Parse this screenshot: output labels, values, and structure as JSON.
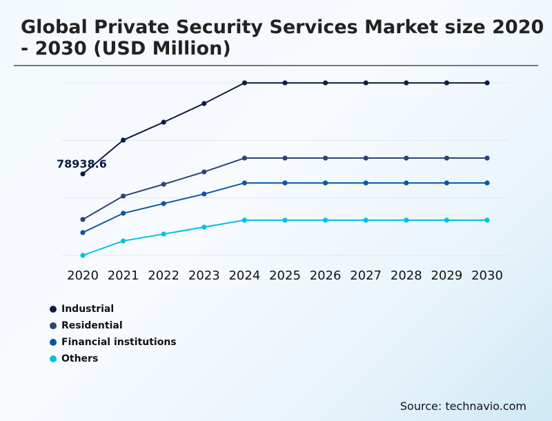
{
  "chart_data": {
    "type": "line",
    "title": "Global Private Security Services Market size 2020 - 2030 (USD Million)",
    "xlabel": "",
    "ylabel": "",
    "x": [
      "2020",
      "2021",
      "2022",
      "2023",
      "2024",
      "2025",
      "2026",
      "2027",
      "2028",
      "2029",
      "2030"
    ],
    "ylim": [
      0,
      167250
    ],
    "grid": true,
    "legend_placement": "bottom-left",
    "annotation": "78938.6",
    "series": [
      {
        "name": "Industrial",
        "color": "#0b1d45",
        "values": [
          78938.6,
          111700,
          129100,
          147200,
          167200,
          167200,
          167200,
          167200,
          167200,
          167200,
          167200
        ]
      },
      {
        "name": "Residential",
        "color": "#2f4475",
        "values": [
          34800,
          57500,
          68900,
          80900,
          94300,
          94300,
          94300,
          94300,
          94300,
          94300,
          94300
        ]
      },
      {
        "name": "Financial institutions",
        "color": "#0d55a3",
        "values": [
          22100,
          40800,
          50200,
          59500,
          70200,
          70200,
          70200,
          70200,
          70200,
          70200,
          70200
        ]
      },
      {
        "name": "Others",
        "color": "#00c2e2",
        "values": [
          0,
          14000,
          20700,
          27400,
          34100,
          34100,
          34100,
          34100,
          34100,
          34100,
          34100
        ]
      }
    ]
  },
  "source": "Source: technavio.com"
}
